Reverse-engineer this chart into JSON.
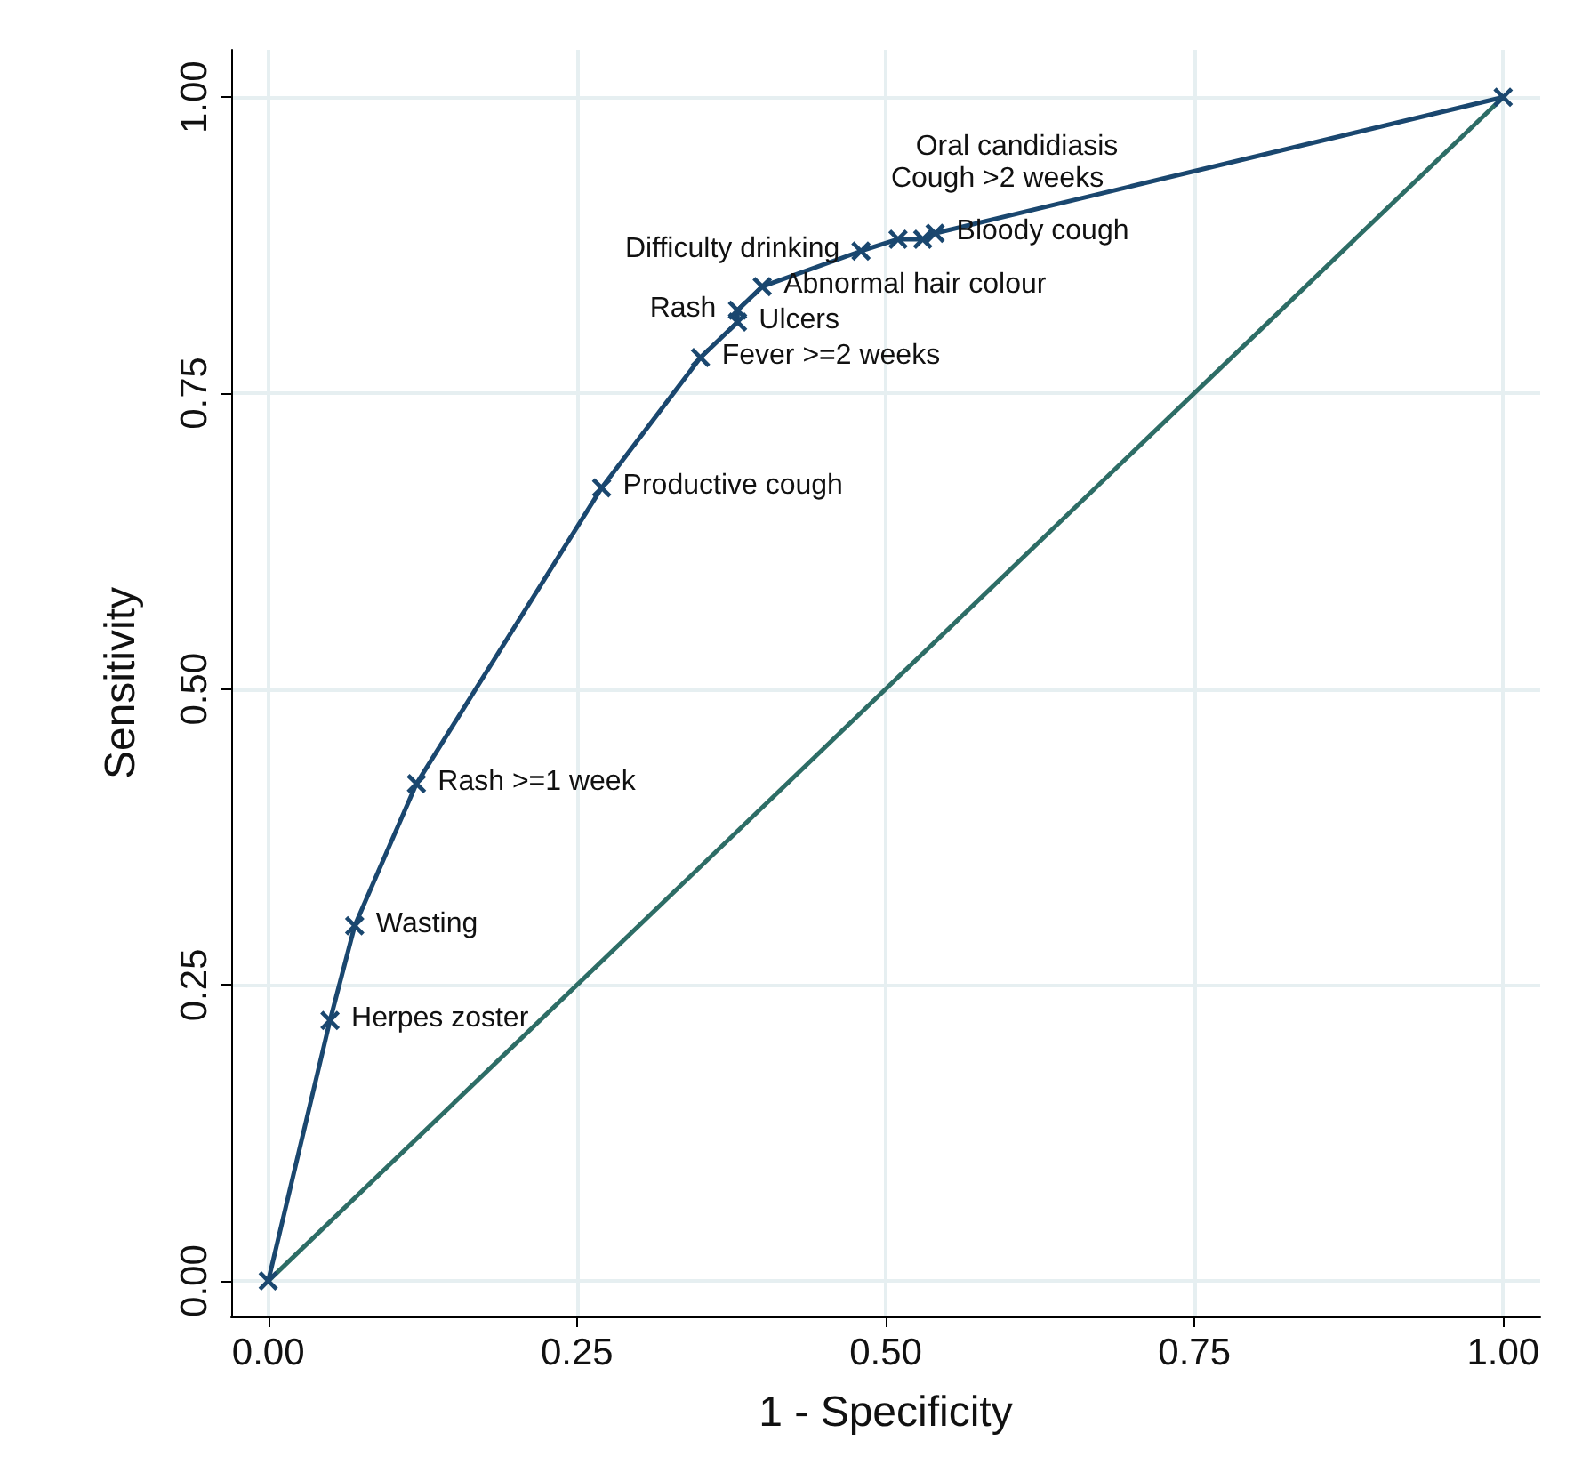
{
  "chart_data": {
    "type": "line",
    "xlabel": "1 - Specificity",
    "ylabel": "Sensitivity",
    "xlim": [
      -0.03,
      1.03
    ],
    "ylim": [
      -0.03,
      1.04
    ],
    "xticks": [
      {
        "value": 0,
        "label": "0.00"
      },
      {
        "value": 0.25,
        "label": "0.25"
      },
      {
        "value": 0.5,
        "label": "0.50"
      },
      {
        "value": 0.75,
        "label": "0.75"
      },
      {
        "value": 1,
        "label": "1.00"
      }
    ],
    "yticks": [
      {
        "value": 0,
        "label": "0.00"
      },
      {
        "value": 0.25,
        "label": "0.25"
      },
      {
        "value": 0.5,
        "label": "0.50"
      },
      {
        "value": 0.75,
        "label": "0.75"
      },
      {
        "value": 1,
        "label": "1.00"
      }
    ],
    "grid": true,
    "series": [
      {
        "color": "#1a476f",
        "marker": "cross",
        "x": [
          0,
          0.05,
          0.07,
          0.12,
          0.27,
          0.35,
          0.38,
          0.38,
          0.4,
          0.48,
          0.51,
          0.53,
          0.54,
          1
        ],
        "values": [
          0,
          0.22,
          0.3,
          0.42,
          0.67,
          0.78,
          0.81,
          0.82,
          0.84,
          0.87,
          0.88,
          0.88,
          0.885,
          1
        ]
      },
      {
        "color": "#2d6d66",
        "marker": "none",
        "x": [
          0,
          1
        ],
        "values": [
          0,
          1
        ]
      }
    ],
    "annotations": [
      {
        "text": "Herpes zoster",
        "x": 0.05,
        "y": 0.22
      },
      {
        "text": "Wasting",
        "x": 0.07,
        "y": 0.3
      },
      {
        "text": "Rash >=1 week",
        "x": 0.12,
        "y": 0.42
      },
      {
        "text": "Productive cough",
        "x": 0.27,
        "y": 0.67
      },
      {
        "text": "Fever >=2 weeks",
        "x": 0.35,
        "y": 0.78
      },
      {
        "text": "Ulcers",
        "x": 0.38,
        "y": 0.81
      },
      {
        "text": "Rash",
        "x": 0.38,
        "y": 0.82
      },
      {
        "text": "Abnormal hair colour",
        "x": 0.4,
        "y": 0.84
      },
      {
        "text": "Difficulty drinking",
        "x": 0.48,
        "y": 0.87
      },
      {
        "text": "Cough >2 weeks",
        "x": 0.51,
        "y": 0.88
      },
      {
        "text": "Oral candidiasis",
        "x": 0.53,
        "y": 0.88
      },
      {
        "text": "Bloody cough",
        "x": 0.54,
        "y": 0.885
      }
    ]
  }
}
